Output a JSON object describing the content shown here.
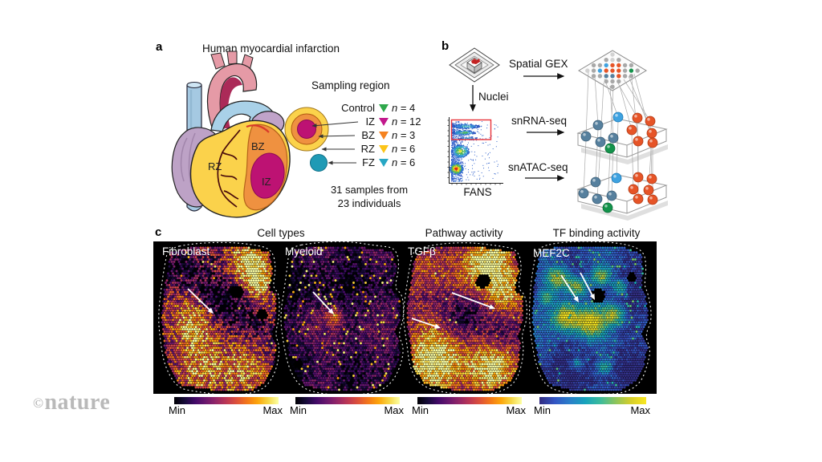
{
  "watermark": {
    "text": "nature",
    "copyright": "©",
    "color": "#b9b9b9"
  },
  "panel_a": {
    "label": "a",
    "title": "Human myocardial infarction",
    "heart_labels": {
      "rz": "RZ",
      "bz": "BZ",
      "iz": "IZ"
    },
    "sampling": {
      "title": "Sampling region",
      "legend": [
        {
          "label": "Control",
          "n_var": "n",
          "n_rest": " = 4",
          "color": "#2fa84c"
        },
        {
          "label": "IZ",
          "n_var": "n",
          "n_rest": " = 12",
          "color": "#c2188c"
        },
        {
          "label": "BZ",
          "n_var": "n",
          "n_rest": " = 3",
          "color": "#f5821f"
        },
        {
          "label": "RZ",
          "n_var": "n",
          "n_rest": " = 6",
          "color": "#fcc418"
        },
        {
          "label": "FZ",
          "n_var": "n",
          "n_rest": " = 6",
          "color": "#28a7c4"
        }
      ],
      "ring_colors": {
        "rz_outer": "#fbd24b",
        "bz_middle": "#ef9140",
        "iz_inner": "#bd1273",
        "fz": "#1f9ab5"
      },
      "note1": "31 samples from",
      "note2": "23 individuals"
    }
  },
  "panel_b": {
    "label": "b",
    "nuclei": "Nuclei",
    "fans": "FANS",
    "spatial_gex": "Spatial GEX",
    "snrna": "snRNA-seq",
    "snatac": "snATAC-seq",
    "gate_color": "#e8333a",
    "sphere_colors": {
      "slate": "#56809e",
      "blue": "#3ea2e0",
      "orange": "#e65427",
      "green": "#13934b"
    },
    "spot_gray": "#a8a8a8"
  },
  "panel_c": {
    "label": "c",
    "headers": [
      {
        "text": "Cell types"
      },
      {
        "text": "Pathway activity"
      },
      {
        "text": "TF binding activity"
      }
    ],
    "colorbar_min": "Min",
    "colorbar_max": "Max",
    "colormaps": {
      "inferno": [
        "#000004",
        "#160b39",
        "#420a68",
        "#6a176e",
        "#932667",
        "#bc3754",
        "#dd513a",
        "#f37819",
        "#fca50a",
        "#f6d746",
        "#fcffa4"
      ],
      "parula": [
        "#322b80",
        "#3355c4",
        "#2a7fc9",
        "#17a3bc",
        "#3cbb9c",
        "#8cc45c",
        "#d6ce2a",
        "#f9e721"
      ]
    },
    "maps": [
      {
        "name": "Fibroblast",
        "colormap": "inferno",
        "seed": 11,
        "base": 0.45,
        "noise": 0.3,
        "speckle": 0.012,
        "bumps": [
          [
            112,
            22,
            30,
            0.6
          ],
          [
            125,
            45,
            20,
            0.35
          ],
          [
            42,
            100,
            26,
            0.3
          ],
          [
            58,
            142,
            38,
            0.35
          ],
          [
            100,
            150,
            30,
            0.25
          ],
          [
            30,
            30,
            26,
            -0.4
          ],
          [
            86,
            72,
            30,
            -0.45
          ],
          [
            118,
            95,
            20,
            -0.35
          ],
          [
            60,
            60,
            18,
            -0.25
          ]
        ],
        "holes": [
          [
            96,
            58,
            8
          ],
          [
            128,
            86,
            7
          ]
        ],
        "arrows": [
          [
            35,
            54,
            67,
            85
          ]
        ]
      },
      {
        "name": "Myeloid",
        "colormap": "inferno",
        "seed": 23,
        "base": 0.17,
        "noise": 0.17,
        "speckle": 0.05,
        "bumps": [
          [
            64,
            88,
            10,
            0.5
          ],
          [
            70,
            130,
            45,
            0.1
          ],
          [
            36,
            58,
            30,
            -0.07
          ]
        ],
        "holes": [
          [
            20,
            148,
            6
          ]
        ],
        "arrows": [
          [
            38,
            58,
            64,
            86
          ]
        ]
      },
      {
        "name": "TGFβ",
        "colormap": "inferno",
        "seed": 37,
        "base": 0.52,
        "noise": 0.22,
        "speckle": 0.008,
        "bumps": [
          [
            102,
            22,
            34,
            0.55
          ],
          [
            130,
            60,
            20,
            0.3
          ],
          [
            42,
            138,
            40,
            0.5
          ],
          [
            110,
            152,
            28,
            0.35
          ],
          [
            78,
            88,
            34,
            -0.33
          ],
          [
            30,
            62,
            24,
            -0.25
          ],
          [
            120,
            110,
            18,
            -0.2
          ]
        ],
        "holes": [
          [
            97,
            44,
            9
          ]
        ],
        "arrows": [
          [
            58,
            59,
            112,
            79
          ],
          [
            8,
            91,
            44,
            103
          ]
        ]
      },
      {
        "name": "MEF2C",
        "colormap": "parula",
        "seed": 51,
        "base": 0.1,
        "noise": 0.1,
        "speckle": 0.05,
        "bumps": [
          [
            34,
            42,
            16,
            0.8
          ],
          [
            58,
            52,
            13,
            0.75
          ],
          [
            88,
            38,
            13,
            0.65
          ],
          [
            112,
            52,
            10,
            0.55
          ],
          [
            44,
            88,
            18,
            0.85
          ],
          [
            74,
            95,
            20,
            0.8
          ],
          [
            104,
            86,
            14,
            0.6
          ],
          [
            58,
            148,
            9,
            0.4
          ],
          [
            92,
            152,
            10,
            0.4
          ],
          [
            20,
            65,
            10,
            0.5
          ]
        ],
        "holes": [
          [
            84,
            62,
            9
          ],
          [
            126,
            40,
            6
          ]
        ],
        "arrows": [
          [
            38,
            37,
            60,
            71
          ],
          [
            62,
            34,
            80,
            68
          ]
        ]
      }
    ]
  }
}
